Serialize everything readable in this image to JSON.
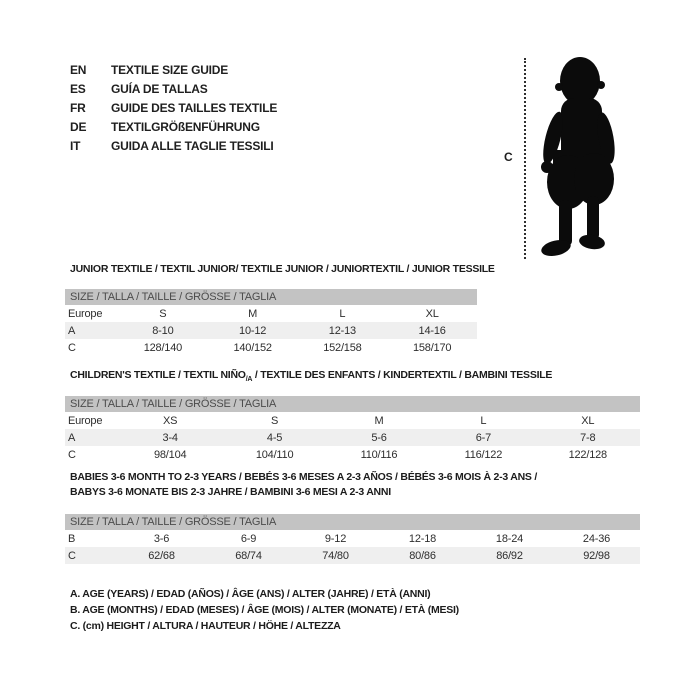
{
  "languages": [
    {
      "code": "EN",
      "label": "TEXTILE SIZE GUIDE"
    },
    {
      "code": "ES",
      "label": "GUÍA DE TALLAS"
    },
    {
      "code": "FR",
      "label": "GUIDE DES TAILLES TEXTILE"
    },
    {
      "code": "DE",
      "label": "TEXTILGRÖßENFÜHRUNG"
    },
    {
      "code": "IT",
      "label": "GUIDA ALLE TAGLIE TESSILI"
    }
  ],
  "figure": {
    "height_label": "C"
  },
  "sections": [
    {
      "title": "JUNIOR TEXTILE / TEXTIL JUNIOR/ TEXTILE JUNIOR / JUNIORTEXTIL / JUNIOR TESSILE",
      "band": "SIZE / TALLA / TAILLE / GRÖSSE / TAGLIA",
      "columns": [
        "Europe",
        "S",
        "M",
        "L",
        "XL"
      ],
      "rows": [
        {
          "label": "A",
          "values": [
            "8-10",
            "10-12",
            "12-13",
            "14-16"
          ],
          "shaded": true
        },
        {
          "label": "C",
          "values": [
            "128/140",
            "140/152",
            "152/158",
            "158/170"
          ],
          "shaded": false
        }
      ]
    },
    {
      "title_pre": "CHILDREN'S TEXTILE / TEXTIL NIÑO",
      "title_sub": "/A",
      "title_post": " / TEXTILE DES ENFANTS / KINDERTEXTIL / BAMBINI TESSILE",
      "band": "SIZE / TALLA / TAILLE / GRÖSSE / TAGLIA",
      "columns": [
        "Europe",
        "XS",
        "S",
        "M",
        "L",
        "XL"
      ],
      "rows": [
        {
          "label": "A",
          "values": [
            "3-4",
            "4-5",
            "5-6",
            "6-7",
            "7-8"
          ],
          "shaded": true
        },
        {
          "label": "C",
          "values": [
            "98/104",
            "104/110",
            "110/116",
            "116/122",
            "122/128"
          ],
          "shaded": false
        }
      ]
    },
    {
      "title_line1": "BABIES 3-6 MONTH TO 2-3 YEARS / BEBÉS 3-6 MESES A 2-3 AÑOS / BÉBÉS 3-6 MOIS À 2-3 ANS /",
      "title_line2": "BABYS 3-6 MONATE BIS 2-3 JAHRE / BAMBINI 3-6 MESI A 2-3 ANNI",
      "band": "SIZE / TALLA / TAILLE / GRÖSSE / TAGLIA",
      "columns": null,
      "rows": [
        {
          "label": "B",
          "values": [
            "3-6",
            "6-9",
            "9-12",
            "12-18",
            "18-24",
            "24-36"
          ],
          "shaded": false
        },
        {
          "label": "C",
          "values": [
            "62/68",
            "68/74",
            "74/80",
            "80/86",
            "86/92",
            "92/98"
          ],
          "shaded": true
        }
      ]
    }
  ],
  "notes": [
    "A. AGE (YEARS) / EDAD (AÑOS) / ÂGE (ANS) / ALTER (JAHRE) / ETÀ (ANNI)",
    "B. AGE (MONTHS) / EDAD (MESES) / ÂGE (MOIS) / ALTER (MONATE) / ETÀ (MESI)",
    "C. (cm) HEIGHT / ALTURA / HAUTEUR / HÖHE / ALTEZZA"
  ],
  "colors": {
    "band_bg": "#c3c3c3",
    "band_text": "#4c4c4c",
    "stripe_bg": "#efefef",
    "text": "#1f1f1f"
  }
}
